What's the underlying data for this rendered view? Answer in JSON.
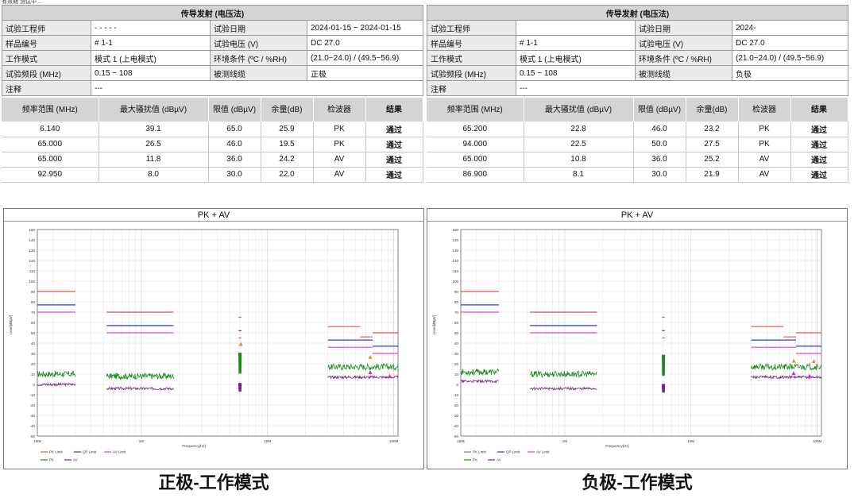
{
  "top_note": "有效期 测试中 ...",
  "panels": [
    {
      "info": {
        "title": "传导发射 (电压法)",
        "engineer_label": "试验工程师",
        "engineer_value": "- - - - -",
        "date_label": "试验日期",
        "date_value": "2024-01-15 ~ 2024-01-15",
        "sample_label": "样品编号",
        "sample_value": "# 1-1",
        "voltage_label": "试验电压 (V)",
        "voltage_value": "DC 27.0",
        "mode_label": "工作模式",
        "mode_value": "模式 1 (上电模式)",
        "env_label": "环境条件 (ºC / %RH)",
        "env_value": "(21.0~24.0) / (49.5~56.9)",
        "freq_label": "试验频段 (MHz)",
        "freq_value": "0.15 ~ 108",
        "cable_label": "被测线缆",
        "cable_value": "正极",
        "note_label": "注释",
        "note_value": "---"
      },
      "results": {
        "headers": [
          "频率范围 (MHz)",
          "最大骚扰值 (dBµV)",
          "限值 (dBµV)",
          "余量(dB)",
          "检波器",
          "结果"
        ],
        "rows": [
          [
            "6.140",
            "39.1",
            "65.0",
            "25.9",
            "PK",
            "通过"
          ],
          [
            "65.000",
            "26.5",
            "46.0",
            "19.5",
            "PK",
            "通过"
          ],
          [
            "65.000",
            "11.8",
            "36.0",
            "24.2",
            "AV",
            "通过"
          ],
          [
            "92.950",
            "8.0",
            "30.0",
            "22.0",
            "AV",
            "通过"
          ]
        ]
      },
      "chart_title": "PK + AV",
      "caption": "正极-工作模式"
    },
    {
      "info": {
        "title": "传导发射 (电压法)",
        "engineer_label": "试验工程师",
        "engineer_value": "",
        "date_label": "试验日期",
        "date_value": "2024-",
        "sample_label": "样品编号",
        "sample_value": "# 1-1",
        "voltage_label": "试验电压 (V)",
        "voltage_value": "DC 27.0",
        "mode_label": "工作模式",
        "mode_value": "模式 1 (上电模式)",
        "env_label": "环境条件 (ºC / %RH)",
        "env_value": "(21.0~24.0) / (49.5~56.9)",
        "freq_label": "试验频段 (MHz)",
        "freq_value": "0.15 ~ 108",
        "cable_label": "被测线缆",
        "cable_value": "负极",
        "note_label": "注释",
        "note_value": "---"
      },
      "results": {
        "headers": [
          "频率范围 (MHz)",
          "最大骚扰值 (dBµV)",
          "限值 (dBµV)",
          "余量(dB)",
          "检波器",
          "结果"
        ],
        "rows": [
          [
            "65.200",
            "22.8",
            "46.0",
            "23.2",
            "PK",
            "通过"
          ],
          [
            "94.000",
            "22.5",
            "50.0",
            "27.5",
            "PK",
            "通过"
          ],
          [
            "65.000",
            "10.8",
            "36.0",
            "25.2",
            "AV",
            "通过"
          ],
          [
            "86.900",
            "8.1",
            "30.0",
            "21.9",
            "AV",
            "通过"
          ]
        ]
      },
      "chart_title": "PK + AV",
      "caption": "负极-工作模式"
    }
  ],
  "chart_data": [
    {
      "type": "line",
      "title": "PK + AV",
      "xlabel": "Frequency[Hz]",
      "ylabel": "Level[dBµV]",
      "x_scale": "log",
      "xlim": [
        150000,
        108000000
      ],
      "ylim": [
        -50,
        150
      ],
      "y_ticks": [
        150,
        140,
        130,
        120,
        110,
        100,
        90,
        80,
        70,
        60,
        50,
        40,
        30,
        20,
        10,
        0,
        -10,
        -20,
        -30,
        -40,
        -50
      ],
      "x_tick_labels": [
        "150k",
        "1M",
        "10M",
        "100M"
      ],
      "legend": [
        "PK Limit",
        "QP Limit",
        "AV Limit",
        "PK",
        "AV"
      ],
      "colors": {
        "PK Limit": "#e8504a",
        "QP Limit": "#2b3fd8",
        "AV Limit": "#e040e0",
        "PK": "#1b8a1b",
        "AV": "#7a1f8a"
      },
      "limits": [
        {
          "band": [
            150000,
            300000
          ],
          "pk": 90,
          "qp": 77,
          "av": 70
        },
        {
          "band": [
            530000,
            1800000
          ],
          "pk": 70,
          "qp": 57,
          "av": 50
        },
        {
          "band": [
            5900000,
            6200000
          ],
          "pk": 65,
          "qp": 52,
          "av": 45
        },
        {
          "band": [
            30000000,
            54000000
          ],
          "pk": 56,
          "qp": 43,
          "av": 36
        },
        {
          "band": [
            54000000,
            68000000
          ],
          "pk": 46,
          "qp": 43,
          "av": 36
        },
        {
          "band": [
            68000000,
            108000000
          ],
          "pk": 50,
          "qp": 37,
          "av": 30
        }
      ],
      "peaks": [
        {
          "f": 6140000,
          "level": 39.1,
          "det": "PK"
        },
        {
          "f": 65000000,
          "level": 26.5,
          "det": "PK"
        },
        {
          "f": 65000000,
          "level": 11.8,
          "det": "AV"
        },
        {
          "f": 92950000,
          "level": 8.0,
          "det": "AV"
        }
      ],
      "pk_bands": [
        {
          "band": [
            150000,
            300000
          ],
          "level": 10
        },
        {
          "band": [
            530000,
            1800000
          ],
          "level": 8
        },
        {
          "band": [
            5900000,
            6200000
          ],
          "level": 20
        },
        {
          "band": [
            30000000,
            108000000
          ],
          "level": 17
        }
      ],
      "av_bands": [
        {
          "band": [
            150000,
            300000
          ],
          "level": 0
        },
        {
          "band": [
            530000,
            1800000
          ],
          "level": -4
        },
        {
          "band": [
            5900000,
            6200000
          ],
          "level": -3
        },
        {
          "band": [
            30000000,
            108000000
          ],
          "level": 7
        }
      ]
    },
    {
      "type": "line",
      "title": "PK + AV",
      "xlabel": "Frequency[Hz]",
      "ylabel": "Level[dBµV]",
      "x_scale": "log",
      "xlim": [
        150000,
        108000000
      ],
      "ylim": [
        -50,
        150
      ],
      "y_ticks": [
        150,
        140,
        130,
        120,
        110,
        100,
        90,
        80,
        70,
        60,
        50,
        40,
        30,
        20,
        10,
        0,
        -10,
        -20,
        -30,
        -40,
        -50
      ],
      "x_tick_labels": [
        "150k",
        "1M",
        "10M",
        "100M"
      ],
      "legend": [
        "PK Limit",
        "QP Limit",
        "AV Limit",
        "PK",
        "AV"
      ],
      "colors": {
        "PK Limit": "#e8504a",
        "QP Limit": "#2b3fd8",
        "AV Limit": "#e040e0",
        "PK": "#1b8a1b",
        "AV": "#7a1f8a"
      },
      "limits": [
        {
          "band": [
            150000,
            300000
          ],
          "pk": 90,
          "qp": 77,
          "av": 70
        },
        {
          "band": [
            530000,
            1800000
          ],
          "pk": 70,
          "qp": 57,
          "av": 50
        },
        {
          "band": [
            5900000,
            6200000
          ],
          "pk": 65,
          "qp": 52,
          "av": 45
        },
        {
          "band": [
            30000000,
            54000000
          ],
          "pk": 56,
          "qp": 43,
          "av": 36
        },
        {
          "band": [
            54000000,
            68000000
          ],
          "pk": 46,
          "qp": 43,
          "av": 36
        },
        {
          "band": [
            68000000,
            108000000
          ],
          "pk": 50,
          "qp": 37,
          "av": 30
        }
      ],
      "peaks": [
        {
          "f": 65200000,
          "level": 22.8,
          "det": "PK"
        },
        {
          "f": 94000000,
          "level": 22.5,
          "det": "PK"
        },
        {
          "f": 65000000,
          "level": 10.8,
          "det": "AV"
        },
        {
          "f": 86900000,
          "level": 8.1,
          "det": "AV"
        }
      ],
      "pk_bands": [
        {
          "band": [
            150000,
            300000
          ],
          "level": 12
        },
        {
          "band": [
            530000,
            1800000
          ],
          "level": 10
        },
        {
          "band": [
            5900000,
            6200000
          ],
          "level": 18
        },
        {
          "band": [
            30000000,
            108000000
          ],
          "level": 17
        }
      ],
      "av_bands": [
        {
          "band": [
            150000,
            300000
          ],
          "level": 3
        },
        {
          "band": [
            530000,
            1800000
          ],
          "level": -4
        },
        {
          "band": [
            5900000,
            6200000
          ],
          "level": -4
        },
        {
          "band": [
            30000000,
            108000000
          ],
          "level": 7
        }
      ]
    }
  ]
}
